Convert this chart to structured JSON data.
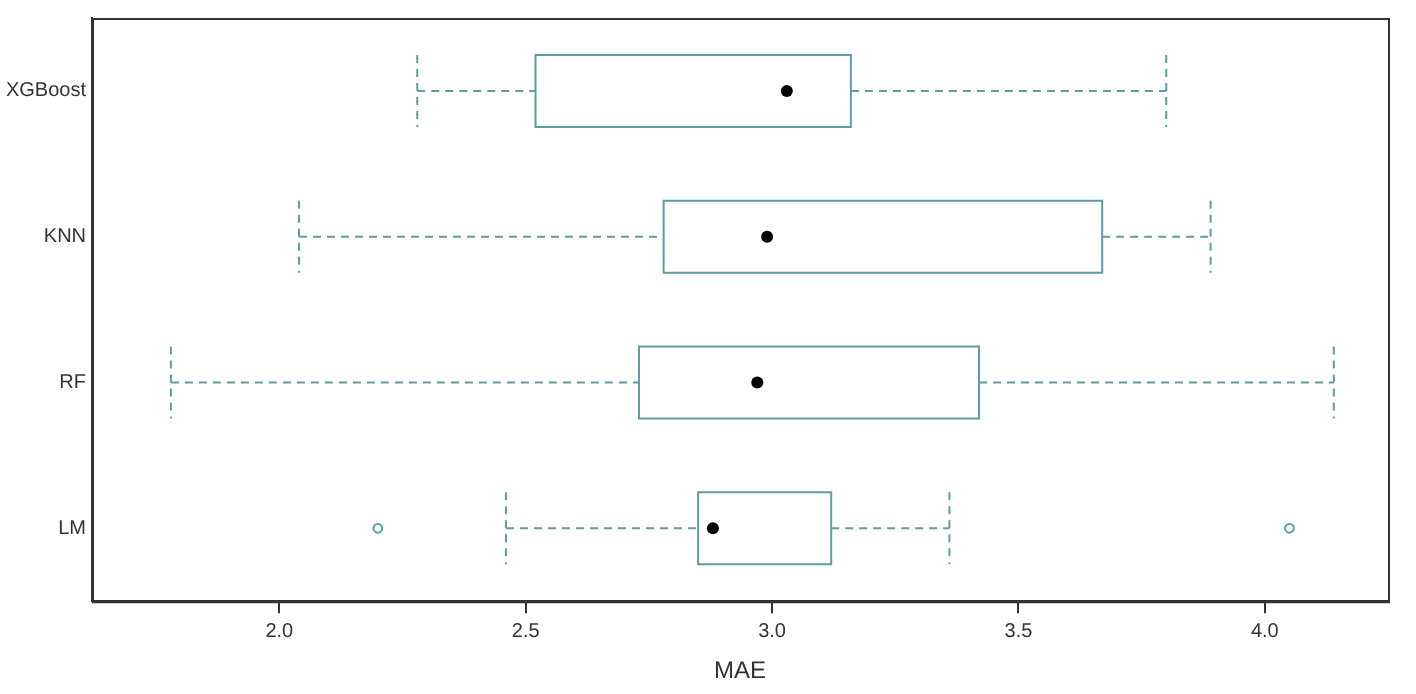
{
  "chart_data": {
    "type": "box",
    "orientation": "horizontal",
    "xlabel": "MAE",
    "categories": [
      "XGBoost",
      "KNN",
      "RF",
      "LM"
    ],
    "color": "#5f9ea0",
    "line_style": "dashed",
    "grid": false,
    "boxes": [
      {
        "low": 2.28,
        "q1": 2.52,
        "median": 3.03,
        "q3": 3.16,
        "high": 3.8
      },
      {
        "low": 2.04,
        "q1": 2.78,
        "median": 2.99,
        "q3": 3.67,
        "high": 3.89
      },
      {
        "low": 1.78,
        "q1": 2.73,
        "median": 2.97,
        "q3": 3.42,
        "high": 4.14
      },
      {
        "low": 2.46,
        "q1": 2.85,
        "median": 2.88,
        "q3": 3.12,
        "high": 3.36,
        "outliers": [
          2.2,
          4.05
        ]
      }
    ],
    "xlim": [
      1.62,
      4.25
    ],
    "xticks": [
      {
        "value": 2,
        "label": "2.0"
      },
      2.5,
      {
        "value": 3,
        "label": "3.0"
      },
      3.5,
      {
        "value": 4,
        "label": "4.0"
      }
    ]
  }
}
